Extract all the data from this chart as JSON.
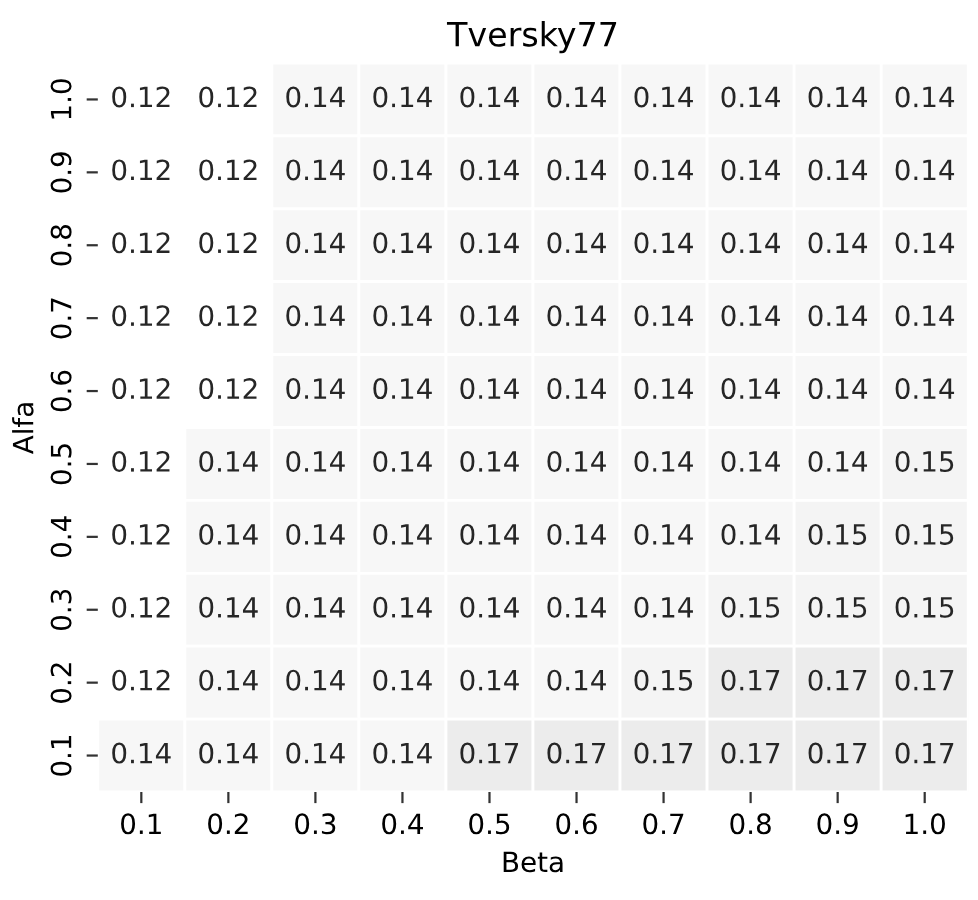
{
  "chart_data": {
    "type": "heatmap",
    "title": "Tversky77",
    "xlabel": "Beta",
    "ylabel": "Alfa",
    "categories": [
      "0.1",
      "0.2",
      "0.3",
      "0.4",
      "0.5",
      "0.6",
      "0.7",
      "0.8",
      "0.9",
      "1.0"
    ],
    "y_categories": [
      "1.0",
      "0.9",
      "0.8",
      "0.7",
      "0.6",
      "0.5",
      "0.4",
      "0.3",
      "0.2",
      "0.1"
    ],
    "cells": [
      [
        0.12,
        0.12,
        0.14,
        0.14,
        0.14,
        0.14,
        0.14,
        0.14,
        0.14,
        0.14
      ],
      [
        0.12,
        0.12,
        0.14,
        0.14,
        0.14,
        0.14,
        0.14,
        0.14,
        0.14,
        0.14
      ],
      [
        0.12,
        0.12,
        0.14,
        0.14,
        0.14,
        0.14,
        0.14,
        0.14,
        0.14,
        0.14
      ],
      [
        0.12,
        0.12,
        0.14,
        0.14,
        0.14,
        0.14,
        0.14,
        0.14,
        0.14,
        0.14
      ],
      [
        0.12,
        0.12,
        0.14,
        0.14,
        0.14,
        0.14,
        0.14,
        0.14,
        0.14,
        0.14
      ],
      [
        0.12,
        0.14,
        0.14,
        0.14,
        0.14,
        0.14,
        0.14,
        0.14,
        0.14,
        0.15
      ],
      [
        0.12,
        0.14,
        0.14,
        0.14,
        0.14,
        0.14,
        0.14,
        0.14,
        0.15,
        0.15
      ],
      [
        0.12,
        0.14,
        0.14,
        0.14,
        0.14,
        0.14,
        0.14,
        0.15,
        0.15,
        0.15
      ],
      [
        0.12,
        0.14,
        0.14,
        0.14,
        0.14,
        0.14,
        0.15,
        0.17,
        0.17,
        0.17
      ],
      [
        0.14,
        0.14,
        0.14,
        0.14,
        0.17,
        0.17,
        0.17,
        0.17,
        0.17,
        0.17
      ]
    ],
    "data_labels": true
  }
}
